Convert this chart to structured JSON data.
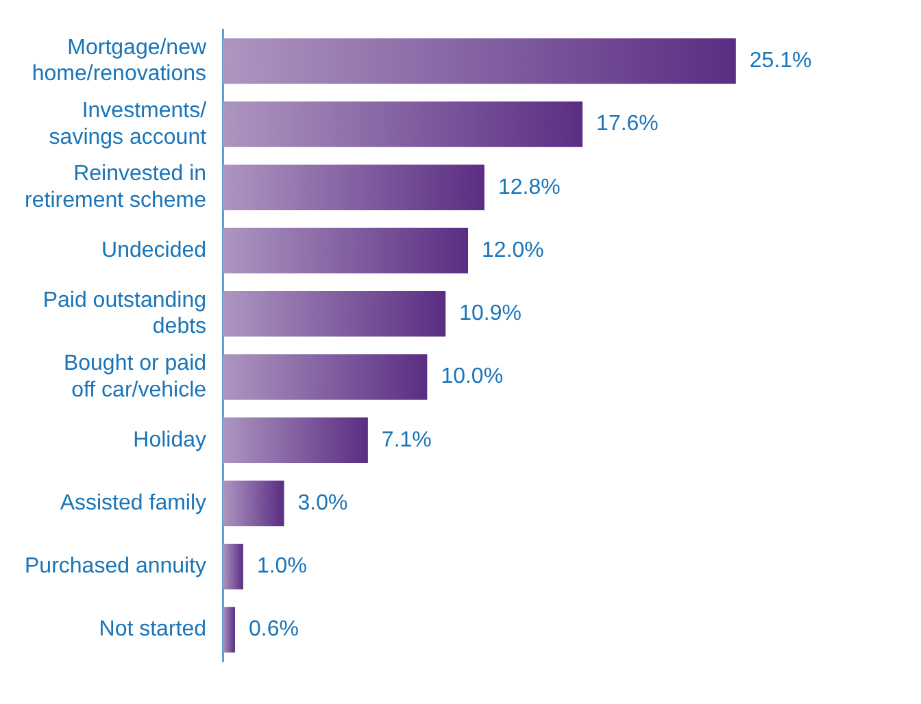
{
  "chart_data": {
    "type": "bar",
    "orientation": "horizontal",
    "categories": [
      "Mortgage/new\nhome/renovations",
      "Investments/\nsavings account",
      "Reinvested in\nretirement scheme",
      "Undecided",
      "Paid outstanding\ndebts",
      "Bought or paid\noff car/vehicle",
      "Holiday",
      "Assisted family",
      "Purchased annuity",
      "Not started"
    ],
    "values": [
      25.1,
      17.6,
      12.8,
      12.0,
      10.9,
      10.0,
      7.1,
      3.0,
      1.0,
      0.6
    ],
    "value_labels": [
      "25.1%",
      "17.6%",
      "12.8%",
      "12.0%",
      "10.9%",
      "10.0%",
      "7.1%",
      "3.0%",
      "1.0%",
      "0.6%"
    ],
    "color": "#5a2d82",
    "grid": false,
    "legend": false
  }
}
